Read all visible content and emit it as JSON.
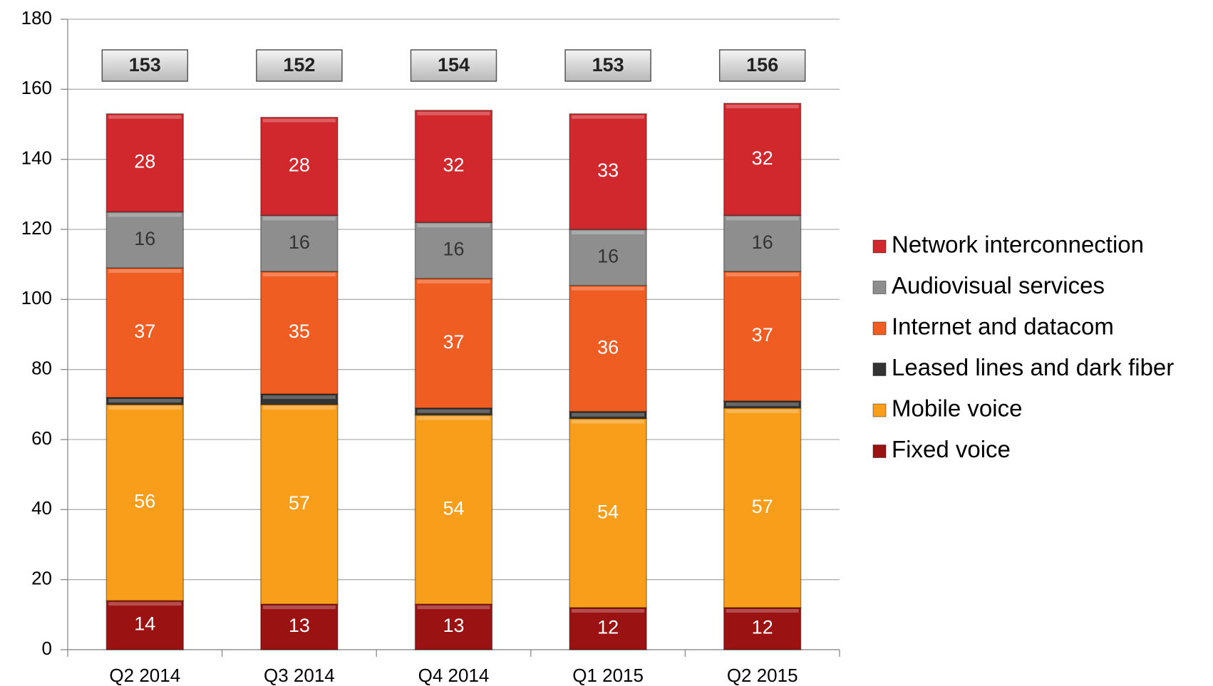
{
  "chart_data": {
    "type": "stacked_bar",
    "categories": [
      "Q2 2014",
      "Q3 2014",
      "Q4 2014",
      "Q1 2015",
      "Q2 2015"
    ],
    "series": [
      {
        "name": "Fixed voice",
        "color": "#9b1212",
        "values": [
          14,
          13,
          13,
          12,
          12
        ]
      },
      {
        "name": "Mobile voice",
        "color": "#f89e1b",
        "values": [
          56,
          57,
          54,
          54,
          57
        ]
      },
      {
        "name": "Leased lines and dark fiber",
        "color": "#333333",
        "values": [
          2,
          3,
          2,
          2,
          2
        ]
      },
      {
        "name": "Internet and datacom",
        "color": "#f05d22",
        "values": [
          37,
          35,
          37,
          36,
          37
        ]
      },
      {
        "name": "Audiovisual services",
        "color": "#8e8e8e",
        "values": [
          16,
          16,
          16,
          16,
          16
        ]
      },
      {
        "name": "Network interconnection",
        "color": "#d0282c",
        "values": [
          28,
          28,
          32,
          33,
          32
        ]
      }
    ],
    "totals": [
      153,
      152,
      154,
      153,
      156
    ],
    "ylim": [
      0,
      180
    ],
    "yticks": [
      0,
      20,
      40,
      60,
      80,
      100,
      120,
      140,
      160,
      180
    ],
    "grid": true,
    "legend": "right"
  }
}
